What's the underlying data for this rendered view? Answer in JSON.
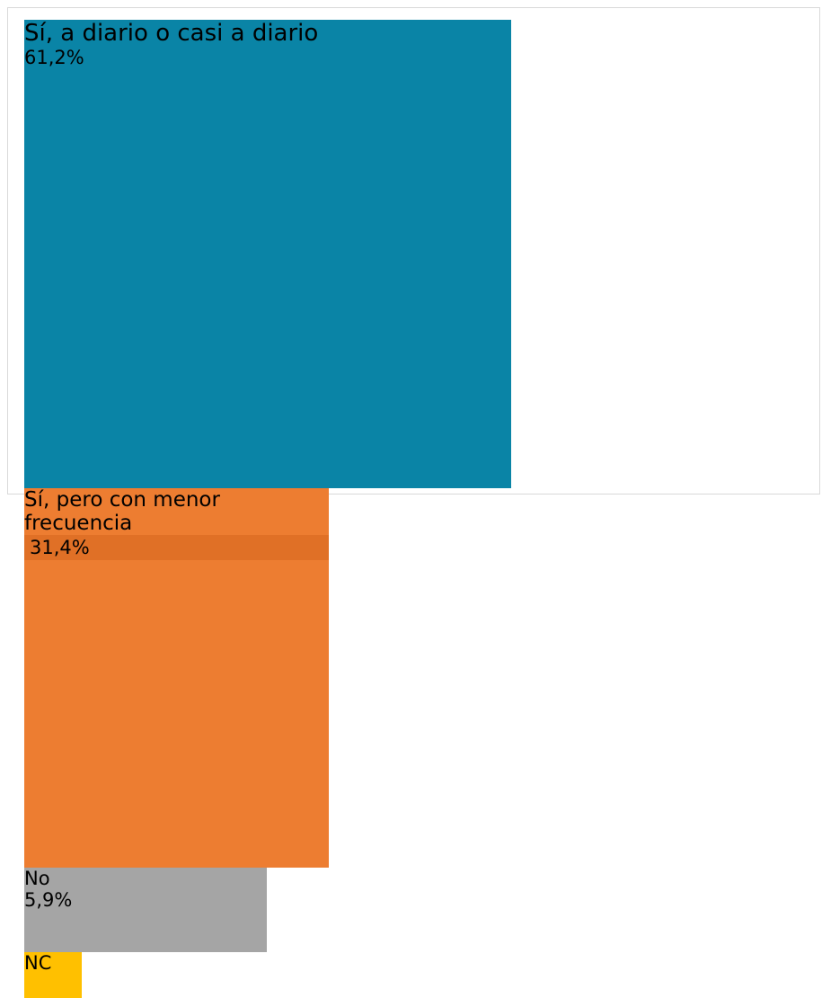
{
  "chart_data": {
    "type": "treemap",
    "categories": [
      "Sí, a diario o casi a diario",
      "Sí, pero con menor frecuencia",
      "No",
      "NC"
    ],
    "values": [
      61.2,
      31.4,
      5.9,
      1.5
    ],
    "value_labels": [
      "61,2%",
      "31,4%",
      "5,9%",
      null
    ],
    "colors": [
      "#0a84a6",
      "#ed7d31",
      "#a5a5a5",
      "#ffc000"
    ]
  }
}
